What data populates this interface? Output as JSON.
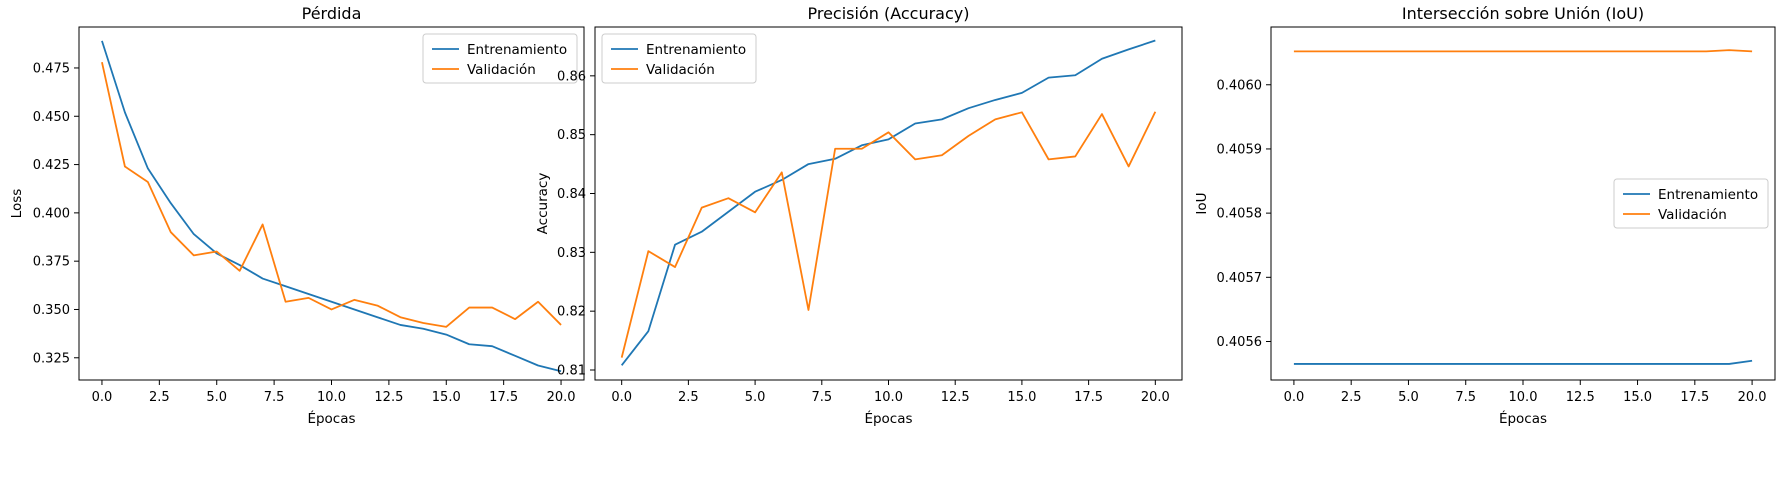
{
  "colors": {
    "train": "#1f77b4",
    "val": "#ff7f0e"
  },
  "chart_data": [
    {
      "type": "line",
      "title": "Pérdida",
      "xlabel": "Épocas",
      "ylabel": "Loss",
      "xlim": [
        -1,
        21
      ],
      "ylim": [
        0.3135,
        0.4962
      ],
      "xticks": [
        0,
        2.5,
        5,
        7.5,
        10,
        12.5,
        15,
        17.5,
        20
      ],
      "xtick_labels": [
        "0.0",
        "2.5",
        "5.0",
        "7.5",
        "10.0",
        "12.5",
        "15.0",
        "17.5",
        "20.0"
      ],
      "yticks": [
        0.325,
        0.35,
        0.375,
        0.4,
        0.425,
        0.45,
        0.475
      ],
      "ytick_labels": [
        "0.325",
        "0.350",
        "0.375",
        "0.400",
        "0.425",
        "0.450",
        "0.475"
      ],
      "legend_position": "top-right",
      "x": [
        0,
        1,
        2,
        3,
        4,
        5,
        6,
        7,
        8,
        9,
        10,
        11,
        12,
        13,
        14,
        15,
        16,
        17,
        18,
        19,
        20
      ],
      "series": [
        {
          "name": "Entrenamiento",
          "color_key": "train",
          "values": [
            0.489,
            0.452,
            0.423,
            0.405,
            0.389,
            0.379,
            0.373,
            0.366,
            0.362,
            0.358,
            0.354,
            0.35,
            0.346,
            0.342,
            0.34,
            0.337,
            0.332,
            0.331,
            0.326,
            0.321,
            0.318
          ]
        },
        {
          "name": "Validación",
          "color_key": "val",
          "values": [
            0.478,
            0.424,
            0.416,
            0.39,
            0.378,
            0.38,
            0.37,
            0.394,
            0.354,
            0.356,
            0.35,
            0.355,
            0.352,
            0.346,
            0.343,
            0.341,
            0.351,
            0.351,
            0.345,
            0.354,
            0.342
          ]
        }
      ]
    },
    {
      "type": "line",
      "title": "Precisión (Accuracy)",
      "xlabel": "Épocas",
      "ylabel": "Accuracy",
      "xlim": [
        -1,
        21
      ],
      "ylim": [
        0.8083,
        0.8683
      ],
      "xticks": [
        0,
        2.5,
        5,
        7.5,
        10,
        12.5,
        15,
        17.5,
        20
      ],
      "xtick_labels": [
        "0.0",
        "2.5",
        "5.0",
        "7.5",
        "10.0",
        "12.5",
        "15.0",
        "17.5",
        "20.0"
      ],
      "yticks": [
        0.81,
        0.82,
        0.83,
        0.84,
        0.85,
        0.86
      ],
      "ytick_labels": [
        "0.81",
        "0.82",
        "0.83",
        "0.84",
        "0.85",
        "0.86"
      ],
      "legend_position": "top-left",
      "x": [
        0,
        1,
        2,
        3,
        4,
        5,
        6,
        7,
        8,
        9,
        10,
        11,
        12,
        13,
        14,
        15,
        16,
        17,
        18,
        19,
        20
      ],
      "series": [
        {
          "name": "Entrenamiento",
          "color_key": "train",
          "values": [
            0.8108,
            0.8166,
            0.8313,
            0.8335,
            0.8369,
            0.8403,
            0.8423,
            0.845,
            0.8459,
            0.8482,
            0.8492,
            0.8519,
            0.8526,
            0.8545,
            0.8559,
            0.8571,
            0.8597,
            0.8601,
            0.8629,
            0.8645,
            0.866
          ]
        },
        {
          "name": "Validación",
          "color_key": "val",
          "values": [
            0.8121,
            0.8302,
            0.8275,
            0.8376,
            0.8392,
            0.8368,
            0.8436,
            0.8202,
            0.8476,
            0.8476,
            0.8504,
            0.8458,
            0.8465,
            0.8498,
            0.8526,
            0.8538,
            0.8458,
            0.8463,
            0.8535,
            0.8446,
            0.8539
          ]
        }
      ]
    },
    {
      "type": "line",
      "title": "Intersección sobre Unión (IoU)",
      "xlabel": "Épocas",
      "ylabel": "IoU",
      "xlim": [
        -1,
        21
      ],
      "ylim": [
        0.40554,
        0.40609
      ],
      "xticks": [
        0,
        2.5,
        5,
        7.5,
        10,
        12.5,
        15,
        17.5,
        20
      ],
      "xtick_labels": [
        "0.0",
        "2.5",
        "5.0",
        "7.5",
        "10.0",
        "12.5",
        "15.0",
        "17.5",
        "20.0"
      ],
      "yticks": [
        0.4056,
        0.4057,
        0.4058,
        0.4059,
        0.406
      ],
      "ytick_labels": [
        "0.4056",
        "0.4057",
        "0.4058",
        "0.4059",
        "0.4060"
      ],
      "legend_position": "center-right",
      "x": [
        0,
        1,
        2,
        3,
        4,
        5,
        6,
        7,
        8,
        9,
        10,
        11,
        12,
        13,
        14,
        15,
        16,
        17,
        18,
        19,
        20
      ],
      "series": [
        {
          "name": "Entrenamiento",
          "color_key": "train",
          "values": [
            0.405565,
            0.405565,
            0.405565,
            0.405565,
            0.405565,
            0.405565,
            0.405565,
            0.405565,
            0.405565,
            0.405565,
            0.405565,
            0.405565,
            0.405565,
            0.405565,
            0.405565,
            0.405565,
            0.405565,
            0.405565,
            0.405565,
            0.405565,
            0.40557
          ]
        },
        {
          "name": "Validación",
          "color_key": "val",
          "values": [
            0.406052,
            0.406052,
            0.406052,
            0.406052,
            0.406052,
            0.406052,
            0.406052,
            0.406052,
            0.406052,
            0.406052,
            0.406052,
            0.406052,
            0.406052,
            0.406052,
            0.406052,
            0.406052,
            0.406052,
            0.406052,
            0.406052,
            0.406054,
            0.406052
          ]
        }
      ]
    }
  ]
}
